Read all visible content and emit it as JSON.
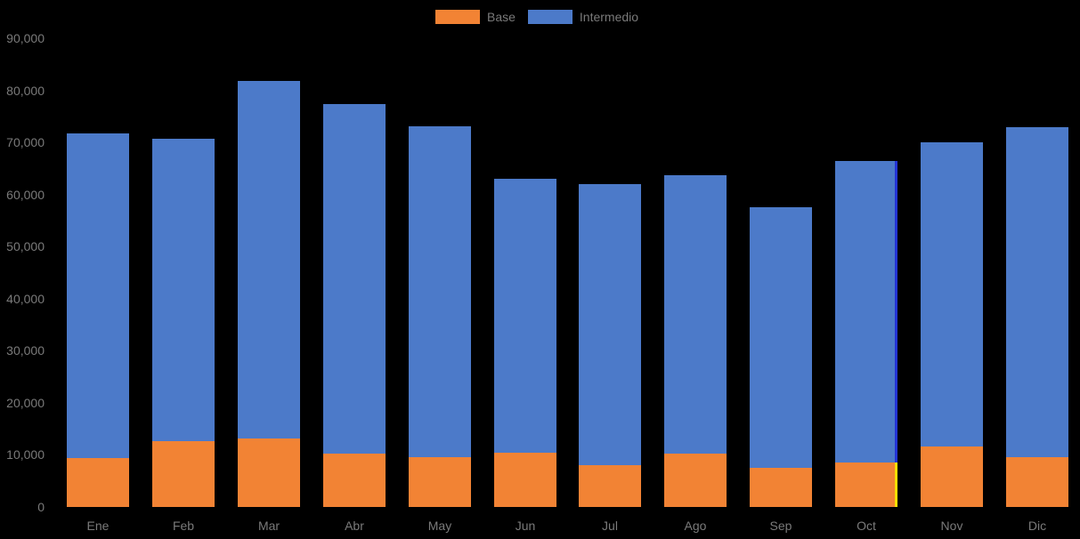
{
  "chart_data": {
    "type": "bar",
    "stacked": true,
    "title": "",
    "xlabel": "",
    "ylabel": "",
    "categories": [
      "Ene",
      "Feb",
      "Mar",
      "Abr",
      "May",
      "Jun",
      "Jul",
      "Ago",
      "Sep",
      "Oct",
      "Nov",
      "Dic"
    ],
    "series": [
      {
        "name": "Base",
        "color": "#F28334",
        "values": [
          9400,
          12600,
          13100,
          10300,
          9500,
          10500,
          8000,
          10300,
          7500,
          8500,
          11600,
          9500
        ]
      },
      {
        "name": "Intermedio",
        "color": "#4C7AC9",
        "values": [
          62400,
          58100,
          68600,
          67100,
          63600,
          52600,
          54000,
          53500,
          50100,
          57900,
          58400,
          63400
        ]
      }
    ],
    "totals": [
      71800,
      70700,
      81700,
      77400,
      73100,
      63100,
      62000,
      63800,
      57600,
      66400,
      70000,
      72900
    ],
    "ylim": [
      0,
      90000
    ],
    "ytick_step": 10000,
    "ytick_labels": [
      "0",
      "10,000",
      "20,000",
      "30,000",
      "40,000",
      "50,000",
      "60,000",
      "70,000",
      "80,000",
      "90,000"
    ],
    "legend_position": "top-center",
    "grid": false,
    "colors": {
      "background": "#000000",
      "text": "#7a7a7a",
      "highlight_edge_intermedio": "#2334D6",
      "highlight_edge_base": "#FFDF00"
    },
    "highlight": {
      "category": "Oct"
    }
  }
}
